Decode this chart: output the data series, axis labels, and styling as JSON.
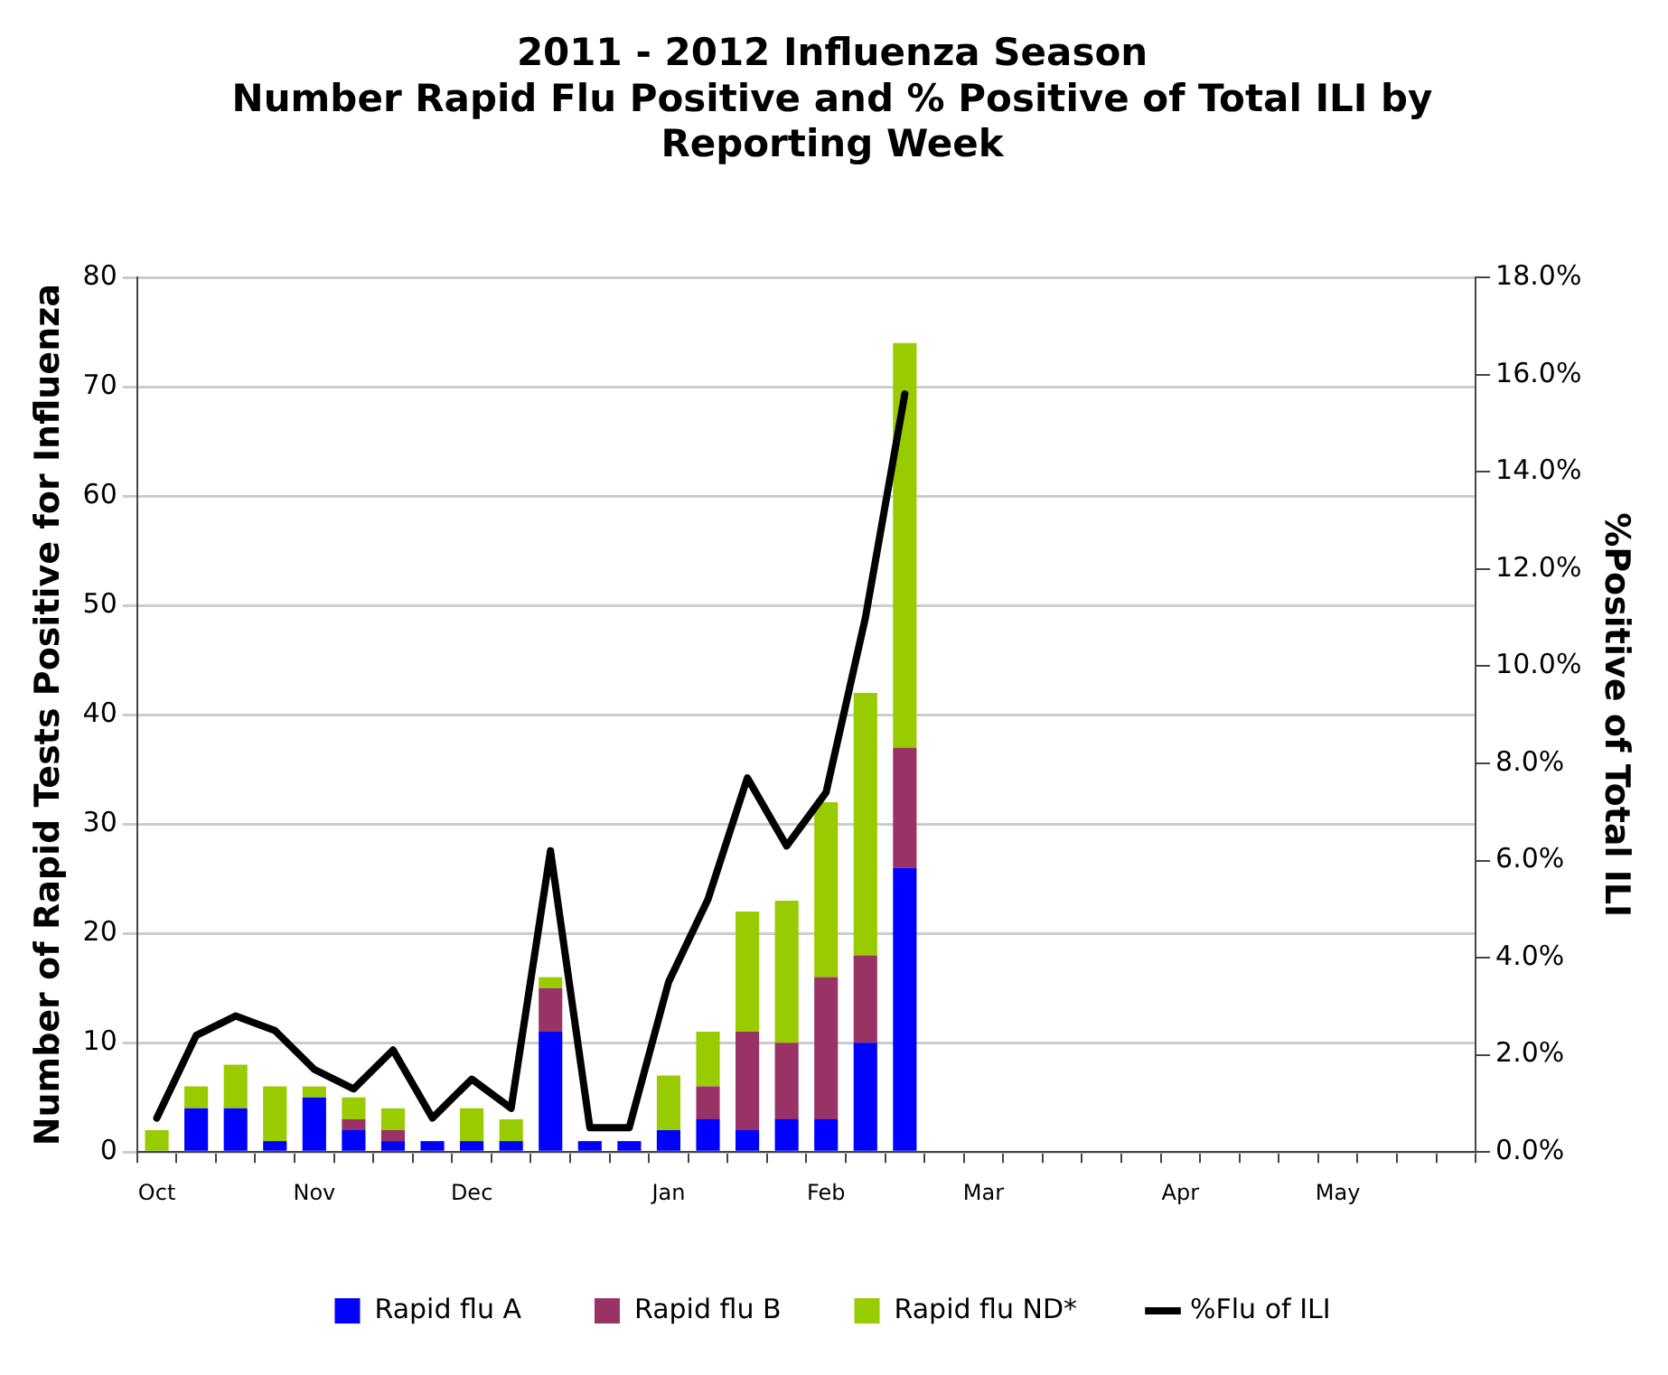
{
  "chart_data": {
    "type": "bar",
    "title": "2011 - 2012 Influenza Season\nNumber Rapid Flu Positive and % Positive of Total ILI by\nReporting Week",
    "ylabel": "Number of Rapid Tests Positive for Influenza",
    "y2label": "%Positive of Total ILI",
    "categories": [
      "Oct",
      null,
      null,
      null,
      "Nov",
      null,
      null,
      null,
      "Dec",
      null,
      null,
      null,
      null,
      "Jan",
      null,
      null,
      null,
      "Feb",
      null,
      null,
      null,
      "Mar",
      null,
      null,
      null,
      null,
      "Apr",
      null,
      null,
      null,
      "May",
      null,
      null,
      null
    ],
    "stacked": true,
    "series": [
      {
        "name": "Rapid flu A",
        "color": "#0000ff",
        "values": [
          0,
          4,
          4,
          1,
          5,
          2,
          1,
          1,
          1,
          1,
          11,
          1,
          1,
          2,
          3,
          2,
          3,
          3,
          10,
          26,
          null,
          null,
          null,
          null,
          null,
          null,
          null,
          null,
          null,
          null,
          null,
          null,
          null,
          null
        ]
      },
      {
        "name": "Rapid flu B",
        "color": "#993366",
        "values": [
          0,
          0,
          0,
          0,
          0,
          1,
          1,
          0,
          0,
          0,
          4,
          0,
          0,
          0,
          3,
          9,
          7,
          13,
          8,
          11,
          null,
          null,
          null,
          null,
          null,
          null,
          null,
          null,
          null,
          null,
          null,
          null,
          null,
          null
        ]
      },
      {
        "name": "Rapid flu ND*",
        "color": "#99cc00",
        "values": [
          2,
          2,
          4,
          5,
          1,
          2,
          2,
          0,
          3,
          2,
          1,
          0,
          0,
          5,
          5,
          11,
          13,
          16,
          24,
          37,
          null,
          null,
          null,
          null,
          null,
          null,
          null,
          null,
          null,
          null,
          null,
          null,
          null,
          null
        ]
      },
      {
        "name": "%Flu of ILI",
        "type": "line",
        "axis": "y2",
        "color": "#000000",
        "values": [
          0.7,
          2.4,
          2.8,
          2.5,
          1.7,
          1.3,
          2.1,
          0.7,
          1.5,
          0.9,
          6.2,
          0.5,
          0.5,
          3.5,
          5.2,
          7.7,
          6.3,
          7.4,
          11.0,
          15.6,
          null,
          null,
          null,
          null,
          null,
          null,
          null,
          null,
          null,
          null,
          null,
          null,
          null,
          null
        ]
      }
    ],
    "ylim": [
      0,
      80
    ],
    "yticks": [
      0,
      10,
      20,
      30,
      40,
      50,
      60,
      70,
      80
    ],
    "y2lim": [
      0,
      18
    ],
    "y2ticks": [
      {
        "value": 0,
        "label": "0.0%"
      },
      {
        "value": 2,
        "label": "2.0%"
      },
      {
        "value": 4,
        "label": "4.0%"
      },
      {
        "value": 6,
        "label": "6.0%"
      },
      {
        "value": 8,
        "label": "8.0%"
      },
      {
        "value": 10,
        "label": "10.0%"
      },
      {
        "value": 12,
        "label": "12.0%"
      },
      {
        "value": 14,
        "label": "14.0%"
      },
      {
        "value": 16,
        "label": "16.0%"
      },
      {
        "value": 18,
        "label": "18.0%"
      }
    ],
    "grid": "y",
    "legend": "bottom",
    "marker": "none"
  }
}
